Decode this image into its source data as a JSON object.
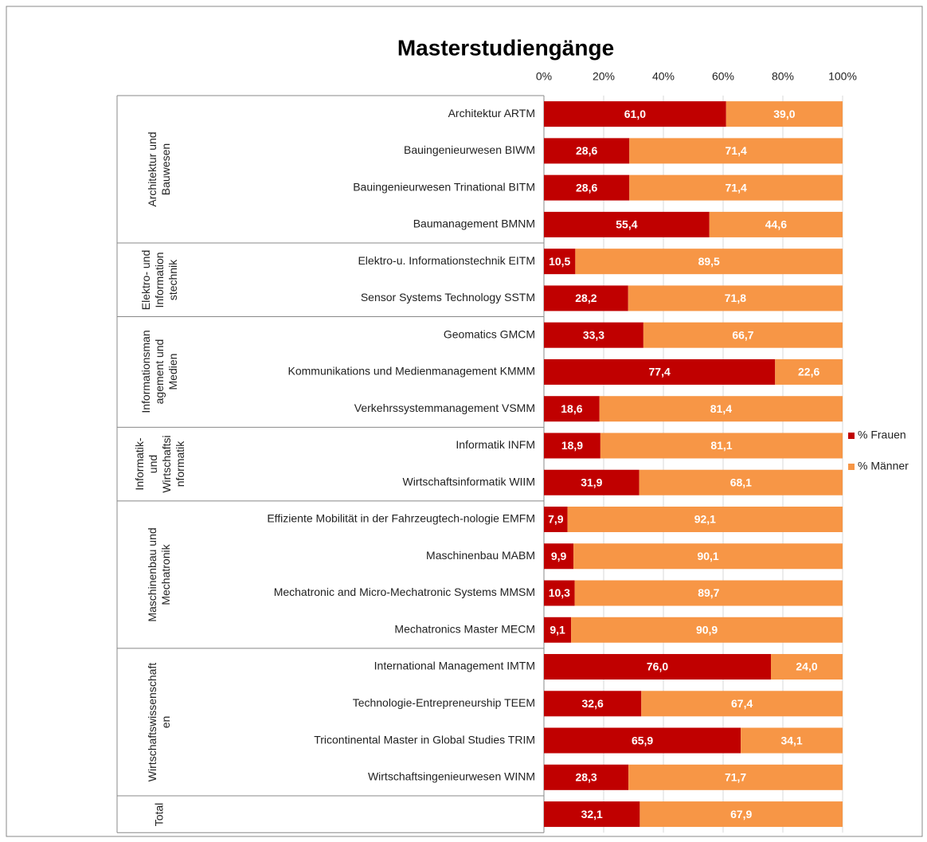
{
  "chart_data": {
    "type": "bar",
    "orientation": "horizontal",
    "stacked": true,
    "title": "Masterstudiengänge",
    "groups": [
      {
        "label": "Architektur und\nBauwesen",
        "categories": [
          "Architektur ARTM",
          "Bauingenieurwesen BIWM",
          "Bauingenieurwesen Trinational BITM",
          "Baumanagement BMNM"
        ]
      },
      {
        "label": "Elektro- und\nInformation\nstechnik",
        "categories": [
          "Elektro-u. Informationstechnik EITM",
          "Sensor Systems Technology SSTM"
        ]
      },
      {
        "label": "Informationsman\nagement und\nMedien",
        "categories": [
          "Geomatics GMCM",
          "Kommunikations und Medienmanagement KMMM",
          "Verkehrssystemmanagement VSMM"
        ]
      },
      {
        "label": "Informatik-\nund\nWirtschaftsi\nnformatik",
        "categories": [
          "Informatik INFM",
          "Wirtschaftsinformatik WIIM"
        ]
      },
      {
        "label": "Maschinenbau und\nMechatronik",
        "categories": [
          "Effiziente Mobilität in der Fahrzeugtech-nologie EMFM",
          "Maschinenbau MABM",
          "Mechatronic and Micro-Mechatronic Systems MMSM",
          "Mechatronics Master MECM"
        ]
      },
      {
        "label": "Wirtschaftswissenschaft\nen",
        "categories": [
          "International Management IMTM",
          "Technologie-Entrepreneurship TEEM",
          "Tricontinental Master in Global Studies TRIM",
          "Wirtschaftsingenieurwesen WINM"
        ]
      },
      {
        "label": "Total",
        "categories": [
          null
        ]
      }
    ],
    "series": [
      {
        "name": "% Frauen",
        "color": "#c00000",
        "values": [
          61.0,
          28.6,
          28.6,
          55.4,
          10.5,
          28.2,
          33.3,
          77.4,
          18.6,
          18.9,
          31.9,
          7.9,
          9.9,
          10.3,
          9.1,
          76.0,
          32.6,
          65.9,
          28.3,
          32.1
        ],
        "value_labels": [
          "61,0",
          "28,6",
          "28,6",
          "55,4",
          "10,5",
          "28,2",
          "33,3",
          "77,4",
          "18,6",
          "18,9",
          "31,9",
          "7,9",
          "9,9",
          "10,3",
          "9,1",
          "76,0",
          "32,6",
          "65,9",
          "28,3",
          "32,1"
        ]
      },
      {
        "name": "% Männer",
        "color": "#f79646",
        "values": [
          39.0,
          71.4,
          71.4,
          44.6,
          89.5,
          71.8,
          66.7,
          22.6,
          81.4,
          81.1,
          68.1,
          92.1,
          90.1,
          89.7,
          90.9,
          24.0,
          67.4,
          34.1,
          71.7,
          67.9
        ],
        "value_labels": [
          "39,0",
          "71,4",
          "71,4",
          "44,6",
          "89,5",
          "71,8",
          "66,7",
          "22,6",
          "81,4",
          "81,1",
          "68,1",
          "92,1",
          "90,1",
          "89,7",
          "90,9",
          "24,0",
          "67,4",
          "34,1",
          "71,7",
          "67,9"
        ]
      }
    ],
    "xlim": [
      0,
      100
    ],
    "xticks": [
      {
        "value": 0,
        "label": "0%"
      },
      {
        "value": 20,
        "label": "20%"
      },
      {
        "value": 40,
        "label": "40%"
      },
      {
        "value": 60,
        "label": "60%"
      },
      {
        "value": 80,
        "label": "80%"
      },
      {
        "value": 100,
        "label": "100%"
      }
    ],
    "xaxis_position": "top",
    "grid": true,
    "legend": "right"
  }
}
